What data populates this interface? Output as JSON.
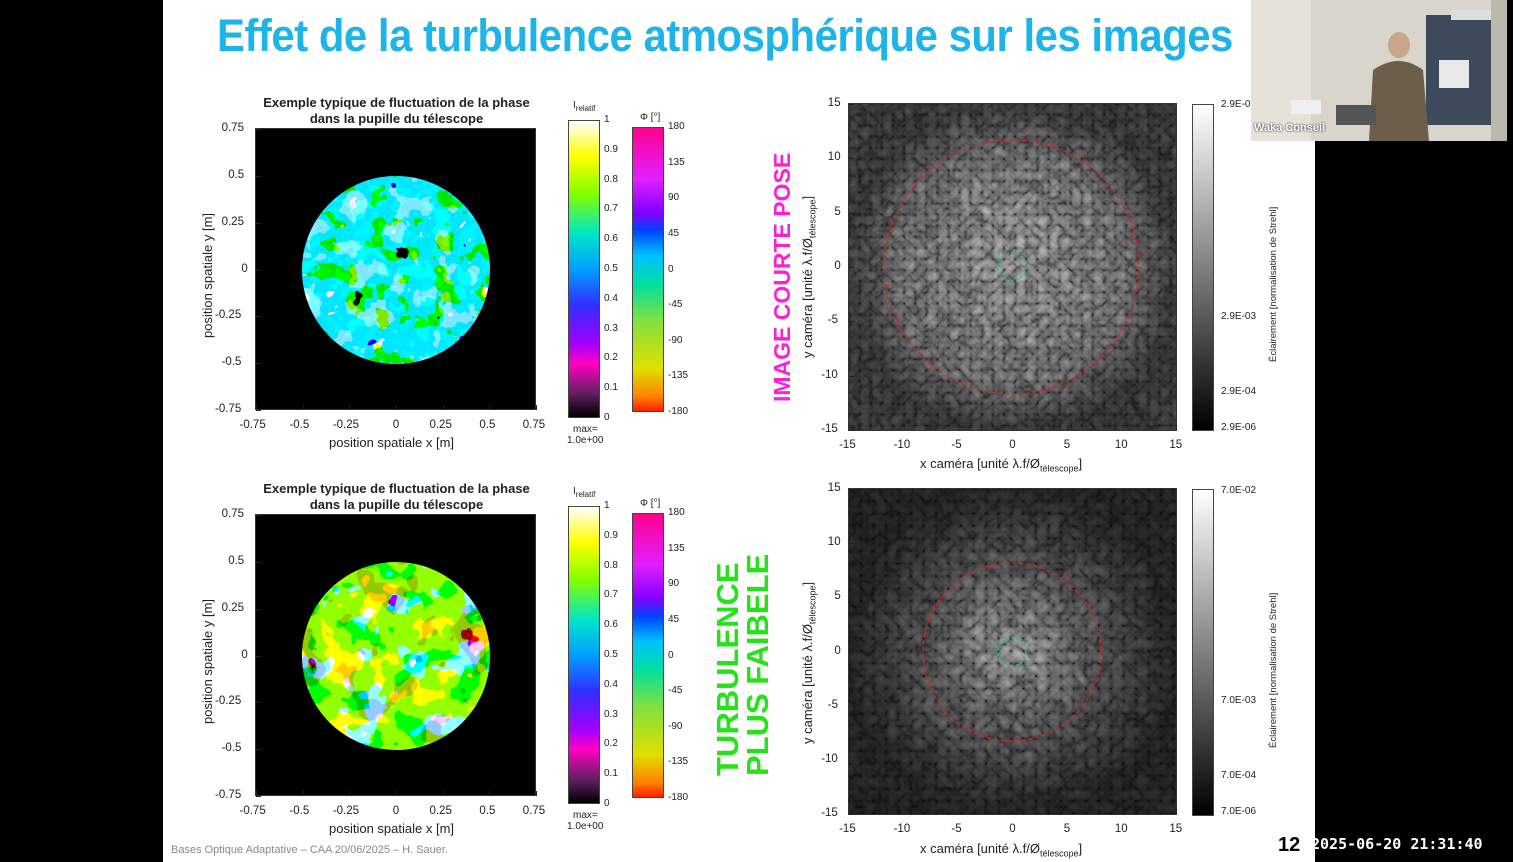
{
  "slide": {
    "title": "Effet de la turbulence atmosphérique sur les images",
    "footer": "Bases Optique Adaptative – CAA 20/06/2025 – H. Sauer.",
    "page_number": "12"
  },
  "overlay": {
    "timestamp": "2025-06-20 21:31:40",
    "webcam_name": "Waka Conseil"
  },
  "phase_plots": {
    "title_line1": "Exemple typique de fluctuation de la phase",
    "title_line2": "dans la pupille du télescope",
    "xlabel": "position spatiale x [m]",
    "ylabel": "position spatiale y [m]",
    "ticks": [
      "-0.75",
      "-0.5",
      "-0.25",
      "0",
      "0.25",
      "0.5",
      "0.75"
    ],
    "intensity_colorbar": {
      "label_main": "I",
      "label_sub": "relatif",
      "ticks": [
        "1",
        "0.9",
        "0.8",
        "0.7",
        "0.6",
        "0.5",
        "0.4",
        "0.3",
        "0.2",
        "0.1",
        "0"
      ],
      "max_label": "max=",
      "max_value": "1.0e+00"
    },
    "phase_colorbar": {
      "label": "Φ [°]",
      "ticks": [
        "180",
        "135",
        "90",
        "45",
        "0",
        "-45",
        "-90",
        "-135",
        "-180"
      ]
    }
  },
  "camera_plots": {
    "xlabel_main": "x caméra [unité λ.f/Ø",
    "xlabel_sub": "télescope",
    "ylabel_main": "y caméra [unité λ.f/Ø",
    "ylabel_sub": "télescope",
    "ticks": [
      "15",
      "10",
      "5",
      "0",
      "-5",
      "-10",
      "-15"
    ],
    "xticks": [
      "-15",
      "-10",
      "-5",
      "0",
      "5",
      "10",
      "15"
    ],
    "colorbar_label": "Éclairement [normalisation de Strehl]",
    "top_colorbar_ticks": [
      "2.9E-0",
      "2.9E-03",
      "2.9E-04",
      "2.9E-06"
    ],
    "bottom_colorbar_ticks": [
      "7.0E-02",
      "7.0E-03",
      "7.0E-04",
      "7.0E-06"
    ]
  },
  "annotations": {
    "short_exposure": "IMAGE COURTE POSE",
    "weak_line1": "TURBULENCE",
    "weak_line2": "PLUS FAIBELE"
  },
  "colors": {
    "title": "#1fb4e8",
    "short_exposure": "#ff1fd6",
    "weak_turbulence": "#27e21a"
  }
}
